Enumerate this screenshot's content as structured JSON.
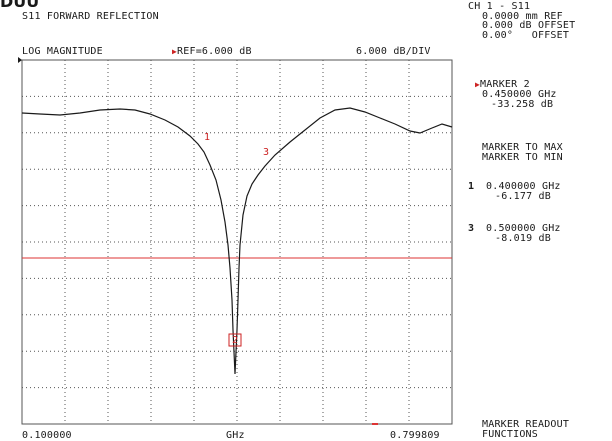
{
  "screen_title": "DUU",
  "trace_title": "S11 FORWARD REFLECTION",
  "format_label": "LOG MAGNITUDE",
  "reference_label": "REF=6.000 dB",
  "scale_label": "6.000 dB/DIV",
  "x_axis": {
    "start": "0.100000",
    "center": "GHz",
    "stop": "0.799809"
  },
  "channel": {
    "name": "CH 1 - S11",
    "ref_line": "0.0000 mm REF",
    "offset_line": "0.000 dB OFFSET",
    "phase_line": "0.00°   OFFSET"
  },
  "active_marker": {
    "label": "MARKER 2",
    "freq": "0.450000 GHz",
    "value": "-33.258 dB"
  },
  "functions": {
    "to_max": "MARKER TO MAX",
    "to_min": "MARKER TO MIN"
  },
  "markers": [
    {
      "num": "1",
      "freq": "0.400000 GHz",
      "value": "-6.177 dB"
    },
    {
      "num": "3",
      "freq": "0.500000 GHz",
      "value": "-8.019 dB"
    }
  ],
  "plot_marker_labels": {
    "m1": "1",
    "m2": "2",
    "m3": "3"
  },
  "readout": {
    "line1": "MARKER READOUT",
    "line2": "FUNCTIONS"
  },
  "colors": {
    "trace": "#1a1a1a",
    "limit_line": "#dd3333",
    "marker": "#cc2222",
    "grid": "#555555"
  }
}
